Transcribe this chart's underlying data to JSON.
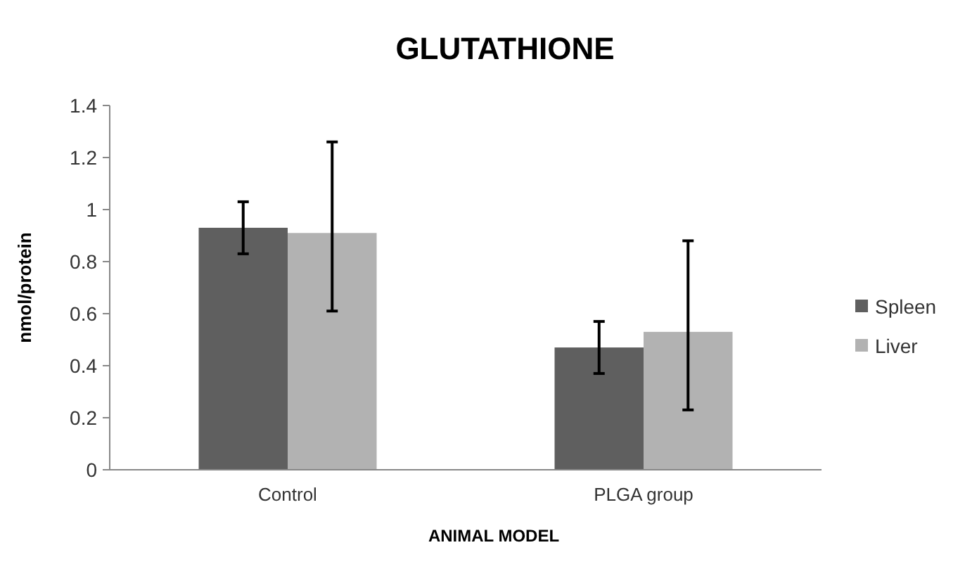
{
  "chart_data": {
    "type": "bar",
    "title": "GLUTATHIONE",
    "xlabel": "ANIMAL MODEL",
    "ylabel": "nmol/protein",
    "categories": [
      "Control",
      "PLGA group"
    ],
    "series": [
      {
        "name": "Spleen",
        "color": "#5f5f5f",
        "values": [
          0.93,
          0.47
        ],
        "errors": [
          [
            0.83,
            1.03
          ],
          [
            0.37,
            0.57
          ]
        ]
      },
      {
        "name": "Liver",
        "color": "#b2b2b2",
        "values": [
          0.91,
          0.53
        ],
        "errors": [
          [
            0.61,
            1.26
          ],
          [
            0.23,
            0.88
          ]
        ]
      }
    ],
    "ylim": [
      0,
      1.4
    ],
    "yticks": [
      0,
      0.2,
      0.4,
      0.6,
      0.8,
      {
        "value": 1,
        "label": "1"
      },
      1.2,
      1.4
    ],
    "grid": false,
    "legend": "right"
  }
}
